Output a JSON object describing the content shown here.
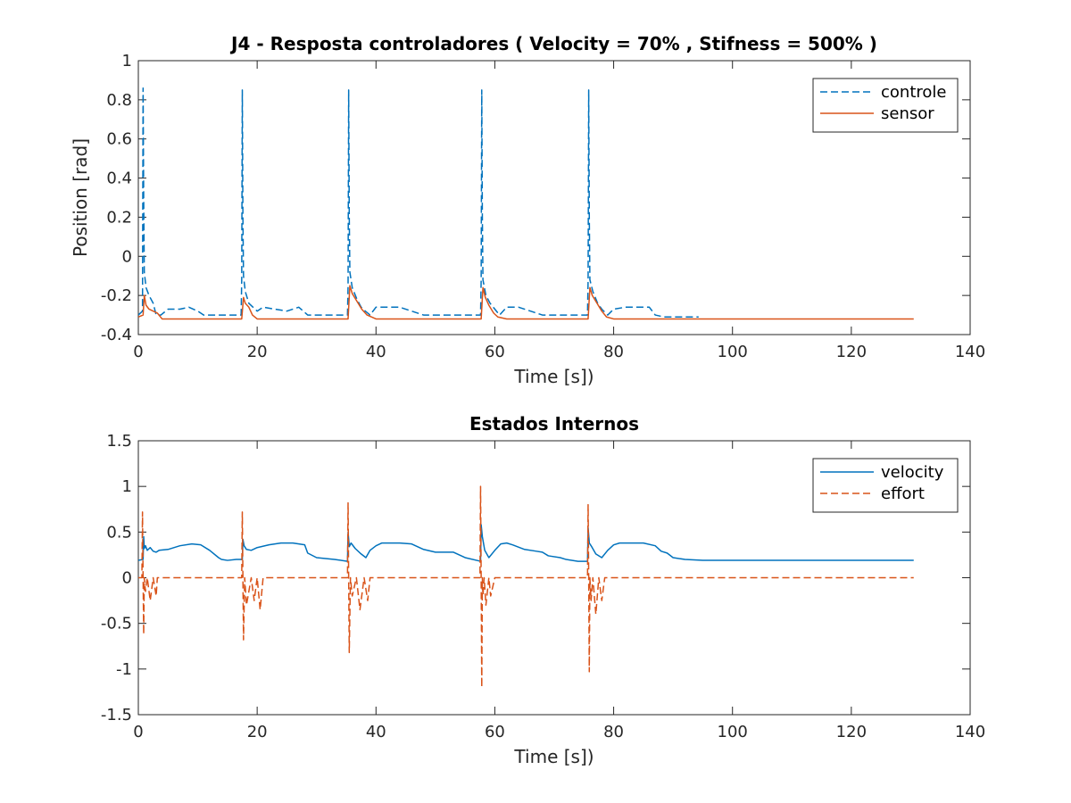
{
  "chart_data": [
    {
      "type": "line",
      "title": "J4 - Resposta controladores ( Velocity = 70% , Stifness = 500% )",
      "xlabel": "Time [s])",
      "ylabel": "Position [rad]",
      "xlim": [
        0,
        140
      ],
      "ylim": [
        -0.4,
        1
      ],
      "xticks": [
        0,
        20,
        40,
        60,
        80,
        100,
        120,
        140
      ],
      "yticks": [
        -0.4,
        -0.2,
        0,
        0.2,
        0.4,
        0.6,
        0.8,
        1
      ],
      "ytick_labels": [
        "-0.4",
        "-0.2",
        "0",
        "0.2",
        "0.4",
        "0.6",
        "0.8",
        "1"
      ],
      "xtick_labels": [
        "0",
        "20",
        "40",
        "60",
        "80",
        "100",
        "120",
        "140"
      ],
      "legend_position": "top-right",
      "series": [
        {
          "name": "controle",
          "color": "#0072BD",
          "dash": "dashed",
          "x": [
            0,
            0.7,
            0.8,
            0.9,
            1.0,
            1.3,
            1.8,
            2.5,
            3.0,
            3.8,
            5.0,
            7.0,
            8.5,
            10.0,
            11.0,
            12.0,
            14.0,
            16.0,
            17.3,
            17.4,
            17.5,
            17.6,
            17.7,
            18.0,
            18.6,
            19.3,
            20.0,
            21.0,
            23.0,
            25.0,
            27.0,
            28.5,
            30.0,
            32.0,
            34.0,
            35.2,
            35.3,
            35.4,
            35.5,
            35.6,
            36.0,
            36.8,
            37.5,
            38.2,
            39.0,
            40.0,
            42.0,
            44.0,
            46.0,
            48.0,
            50.0,
            52.0,
            54.0,
            56.0,
            57.6,
            57.7,
            57.8,
            57.9,
            58.0,
            58.5,
            59.2,
            60.0,
            60.8,
            62.0,
            64.0,
            66.0,
            68.0,
            70.0,
            72.0,
            74.0,
            75.6,
            75.7,
            75.8,
            75.9,
            76.0,
            76.5,
            77.3,
            78.0,
            79.0,
            80.0,
            82.0,
            84.0,
            86.0,
            87.0,
            88.5,
            90.0,
            92.0,
            94.3
          ],
          "y": [
            -0.3,
            -0.28,
            0.86,
            0.3,
            -0.08,
            -0.16,
            -0.2,
            -0.24,
            -0.3,
            -0.3,
            -0.27,
            -0.27,
            -0.26,
            -0.28,
            -0.3,
            -0.3,
            -0.3,
            -0.3,
            -0.3,
            -0.12,
            0.85,
            0.2,
            -0.1,
            -0.18,
            -0.24,
            -0.26,
            -0.28,
            -0.26,
            -0.27,
            -0.28,
            -0.26,
            -0.3,
            -0.3,
            -0.3,
            -0.3,
            -0.3,
            -0.15,
            0.85,
            0.2,
            -0.08,
            -0.16,
            -0.22,
            -0.26,
            -0.28,
            -0.3,
            -0.26,
            -0.26,
            -0.26,
            -0.28,
            -0.3,
            -0.3,
            -0.3,
            -0.3,
            -0.3,
            -0.3,
            -0.12,
            0.85,
            0.2,
            -0.12,
            -0.2,
            -0.24,
            -0.27,
            -0.3,
            -0.26,
            -0.26,
            -0.28,
            -0.3,
            -0.3,
            -0.3,
            -0.3,
            -0.3,
            -0.12,
            0.85,
            0.2,
            -0.12,
            -0.18,
            -0.24,
            -0.27,
            -0.3,
            -0.27,
            -0.26,
            -0.26,
            -0.26,
            -0.3,
            -0.31,
            -0.31,
            -0.31,
            -0.31
          ]
        },
        {
          "name": "sensor",
          "color": "#D95319",
          "dash": "solid",
          "x": [
            0,
            0.8,
            1.0,
            1.3,
            1.8,
            2.5,
            3.2,
            4.0,
            6.0,
            10.0,
            14.0,
            17.4,
            17.7,
            18.0,
            18.6,
            19.2,
            20.0,
            24.0,
            28.0,
            32.0,
            35.3,
            35.6,
            36.0,
            36.8,
            37.6,
            38.5,
            40.0,
            46.0,
            52.0,
            57.7,
            58.0,
            58.4,
            59.0,
            59.8,
            60.5,
            62.0,
            68.0,
            72.0,
            75.7,
            76.0,
            76.4,
            77.2,
            78.0,
            78.8,
            80.0,
            90.0,
            100.0,
            110.0,
            120.0,
            130.5
          ],
          "y": [
            -0.31,
            -0.3,
            -0.2,
            -0.25,
            -0.27,
            -0.28,
            -0.29,
            -0.32,
            -0.32,
            -0.32,
            -0.32,
            -0.32,
            -0.21,
            -0.24,
            -0.26,
            -0.3,
            -0.32,
            -0.32,
            -0.32,
            -0.32,
            -0.32,
            -0.15,
            -0.19,
            -0.23,
            -0.27,
            -0.3,
            -0.32,
            -0.32,
            -0.32,
            -0.32,
            -0.16,
            -0.21,
            -0.25,
            -0.29,
            -0.31,
            -0.32,
            -0.32,
            -0.32,
            -0.32,
            -0.16,
            -0.2,
            -0.24,
            -0.28,
            -0.31,
            -0.32,
            -0.32,
            -0.32,
            -0.32,
            -0.32,
            -0.32
          ]
        }
      ]
    },
    {
      "type": "line",
      "title": "Estados Internos",
      "xlabel": "Time [s])",
      "ylabel": "",
      "xlim": [
        0,
        140
      ],
      "ylim": [
        -1.5,
        1.5
      ],
      "xticks": [
        0,
        20,
        40,
        60,
        80,
        100,
        120,
        140
      ],
      "yticks": [
        -1.5,
        -1,
        -0.5,
        0,
        0.5,
        1,
        1.5
      ],
      "ytick_labels": [
        "-1.5",
        "-1",
        "-0.5",
        "0",
        "0.5",
        "1",
        "1.5"
      ],
      "xtick_labels": [
        "0",
        "20",
        "40",
        "60",
        "80",
        "100",
        "120",
        "140"
      ],
      "legend_position": "top-right",
      "series": [
        {
          "name": "velocity",
          "color": "#0072BD",
          "dash": "solid",
          "x": [
            0,
            0.8,
            0.9,
            1.0,
            1.2,
            1.5,
            2.0,
            2.5,
            3.0,
            3.5,
            5.0,
            7.0,
            9.0,
            10.5,
            12.0,
            13.5,
            14.0,
            15.0,
            16.5,
            17.5,
            17.6,
            17.8,
            18.2,
            19.0,
            20.0,
            22.0,
            24.0,
            26.0,
            28.0,
            28.5,
            30.0,
            33.0,
            35.2,
            35.3,
            35.5,
            35.8,
            36.5,
            37.5,
            38.3,
            39.0,
            40.0,
            41.0,
            42.0,
            44.0,
            46.0,
            48.0,
            50.0,
            53.0,
            55.0,
            57.6,
            57.7,
            57.9,
            58.3,
            59.0,
            60.0,
            61.0,
            62.0,
            63.0,
            65.0,
            67.0,
            68.0,
            69.0,
            71.0,
            72.0,
            74.0,
            75.6,
            75.7,
            75.9,
            76.3,
            77.0,
            78.0,
            79.0,
            80.0,
            81.0,
            82.0,
            83.0,
            85.0,
            87.0,
            88.0,
            89.0,
            90.0,
            92.0,
            95.0,
            100.0,
            110.0,
            120.0,
            130.5
          ],
          "y": [
            0.19,
            0.2,
            0.45,
            0.32,
            0.35,
            0.3,
            0.33,
            0.29,
            0.28,
            0.3,
            0.31,
            0.35,
            0.37,
            0.36,
            0.3,
            0.22,
            0.2,
            0.19,
            0.2,
            0.2,
            0.42,
            0.35,
            0.31,
            0.3,
            0.33,
            0.36,
            0.38,
            0.38,
            0.36,
            0.27,
            0.22,
            0.2,
            0.18,
            0.5,
            0.34,
            0.38,
            0.32,
            0.26,
            0.22,
            0.3,
            0.35,
            0.38,
            0.38,
            0.38,
            0.37,
            0.31,
            0.28,
            0.28,
            0.22,
            0.18,
            0.58,
            0.45,
            0.3,
            0.22,
            0.3,
            0.37,
            0.38,
            0.36,
            0.31,
            0.29,
            0.28,
            0.24,
            0.22,
            0.2,
            0.18,
            0.18,
            0.55,
            0.38,
            0.34,
            0.26,
            0.22,
            0.3,
            0.36,
            0.38,
            0.38,
            0.38,
            0.38,
            0.35,
            0.29,
            0.27,
            0.22,
            0.2,
            0.19,
            0.19,
            0.19,
            0.19,
            0.19
          ]
        },
        {
          "name": "effort",
          "color": "#D95319",
          "dash": "dashed",
          "x": [
            0,
            0.6,
            0.7,
            0.8,
            0.9,
            1.0,
            1.2,
            1.5,
            2.0,
            2.5,
            3.0,
            3.2,
            3.5,
            5.0,
            10.0,
            15.0,
            17.4,
            17.5,
            17.6,
            17.7,
            17.9,
            18.2,
            19.0,
            19.5,
            20.0,
            20.5,
            21.0,
            25.0,
            30.0,
            35.2,
            35.3,
            35.4,
            35.5,
            35.7,
            36.0,
            36.7,
            37.3,
            38.0,
            38.6,
            39.0,
            42.0,
            50.0,
            57.5,
            57.6,
            57.7,
            57.8,
            57.9,
            58.0,
            58.2,
            58.5,
            59.0,
            59.3,
            60.0,
            65.0,
            70.0,
            75.6,
            75.7,
            75.8,
            75.9,
            76.0,
            76.2,
            76.5,
            77.0,
            77.5,
            78.0,
            78.5,
            79.0,
            85.0,
            90.0,
            100.0,
            110.0,
            120.0,
            130.5
          ],
          "y": [
            0.0,
            0.0,
            0.72,
            0.0,
            -0.62,
            0.0,
            -0.15,
            0.0,
            -0.25,
            0.0,
            -0.2,
            0.0,
            0.0,
            0.0,
            0.0,
            0.0,
            0.0,
            0.72,
            0.0,
            -0.68,
            0.0,
            -0.3,
            0.0,
            -0.25,
            0.0,
            -0.35,
            0.0,
            0.0,
            0.0,
            0.0,
            0.82,
            0.0,
            -0.82,
            0.0,
            -0.2,
            0.0,
            -0.35,
            0.0,
            -0.25,
            0.0,
            0.0,
            0.0,
            0.0,
            1.0,
            0.0,
            -1.2,
            0.0,
            -0.2,
            0.0,
            -0.3,
            0.0,
            -0.2,
            0.0,
            0.0,
            0.0,
            0.0,
            0.8,
            0.0,
            -1.03,
            0.0,
            -0.25,
            0.0,
            -0.4,
            0.0,
            -0.25,
            0.0,
            0.0,
            0.0,
            0.0,
            0.0,
            0.0,
            0.0,
            0.0
          ]
        }
      ]
    }
  ]
}
